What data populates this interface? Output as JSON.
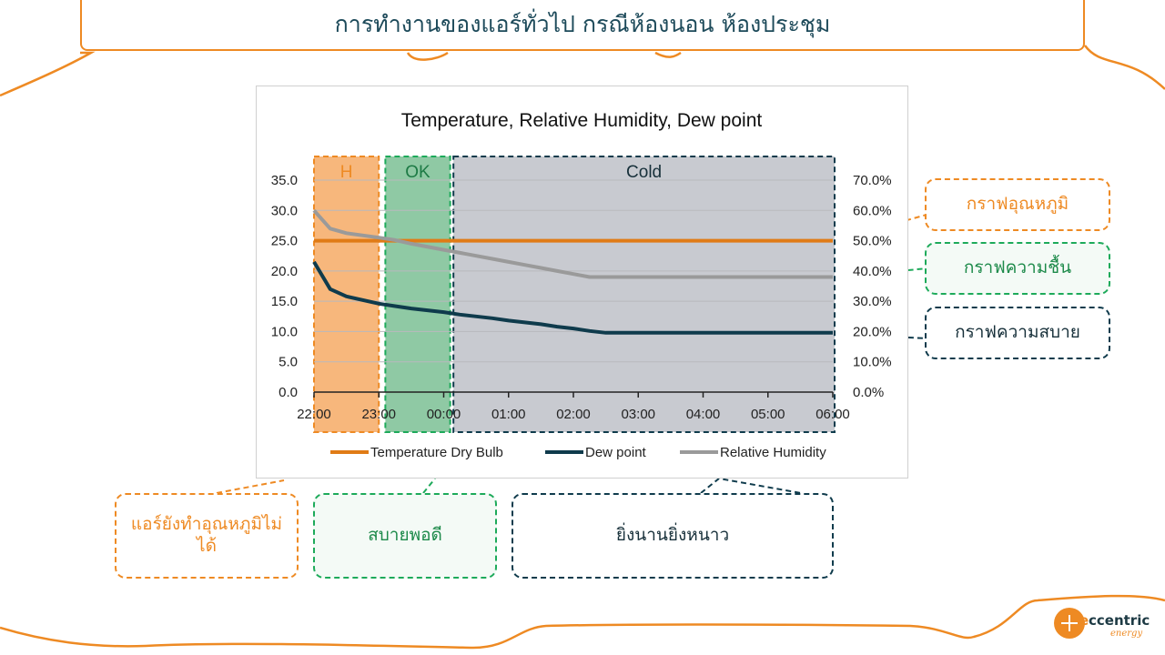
{
  "slide": {
    "title": "การทำงานของแอร์ทั่วไป กรณีห้องนอน ห้องประชุม",
    "accent_color": "#ee8a23",
    "logo": {
      "text_e": "e",
      "text_rest": "ccentric",
      "sub": "energy"
    }
  },
  "chart_data": {
    "type": "line",
    "title": "Temperature, Relative Humidity, Dew point",
    "x_ticks": [
      "22:00",
      "23:00",
      "00:00",
      "01:00",
      "02:00",
      "03:00",
      "04:00",
      "05:00",
      "06:00"
    ],
    "y_left": {
      "ticks": [
        "0.0",
        "5.0",
        "10.0",
        "15.0",
        "20.0",
        "25.0",
        "30.0",
        "35.0"
      ],
      "min": 0,
      "max": 35
    },
    "y_right": {
      "ticks": [
        "0.0%",
        "10.0%",
        "20.0%",
        "30.0%",
        "40.0%",
        "50.0%",
        "60.0%",
        "70.0%"
      ],
      "min": 0,
      "max": 70
    },
    "grid": true,
    "legend_position": "bottom",
    "series": [
      {
        "name": "Temperature Dry Bulb",
        "axis": "left",
        "color": "#e07b16",
        "x": [
          22.0,
          22.5,
          23.0,
          23.5,
          24.0,
          24.5,
          25.0,
          25.5,
          26.0,
          26.5,
          27.0,
          27.5,
          28.0,
          28.5,
          29.0,
          29.5,
          30.0
        ],
        "y": [
          25,
          25,
          25,
          25,
          25,
          25,
          25,
          25,
          25,
          25,
          25,
          25,
          25,
          25,
          25,
          25,
          25
        ]
      },
      {
        "name": "Dew point",
        "axis": "left",
        "color": "#0f3b4c",
        "x": [
          22.0,
          22.25,
          22.5,
          23.0,
          23.25,
          23.5,
          24.0,
          24.25,
          24.5,
          24.75,
          25.0,
          25.25,
          25.5,
          25.75,
          26.0,
          26.25,
          26.5,
          27.0,
          28.0,
          29.0,
          30.0
        ],
        "y": [
          21.5,
          17.0,
          15.8,
          14.6,
          14.2,
          13.8,
          13.2,
          12.8,
          12.5,
          12.2,
          11.8,
          11.5,
          11.2,
          10.8,
          10.5,
          10.1,
          9.8,
          9.8,
          9.8,
          9.8,
          9.8
        ]
      },
      {
        "name": "Relative Humidity",
        "axis": "right",
        "color": "#9a9a9a",
        "x": [
          22.0,
          22.25,
          22.5,
          23.0,
          23.25,
          23.5,
          24.0,
          24.25,
          24.5,
          24.75,
          25.0,
          25.25,
          25.5,
          25.75,
          26.0,
          26.25,
          26.5,
          27.0,
          28.0,
          29.0,
          30.0
        ],
        "y": [
          60.0,
          54.0,
          52.5,
          51.0,
          50.2,
          49.0,
          47.0,
          46.0,
          45.0,
          44.0,
          43.0,
          42.0,
          41.0,
          40.0,
          39.0,
          38.0,
          38.0,
          38.0,
          38.0,
          38.0,
          38.0
        ]
      }
    ],
    "regions": [
      {
        "label": "H",
        "from": 22.0,
        "to": 23.0,
        "fill": "#f7b77c",
        "border": "#ee8a23",
        "text_color": "#ee8a23"
      },
      {
        "label": "OK",
        "from": 23.1,
        "to": 24.1,
        "fill": "#8fc9a4",
        "border": "#1daa5a",
        "text_color": "#1d7a45"
      },
      {
        "label": "Cold",
        "from": 24.15,
        "to": 30.2,
        "fill": "#c8cad0",
        "border": "#0f3b4c",
        "text_color": "#17303a"
      }
    ]
  },
  "callouts": {
    "temp_graph": "กราฟอุณหภูมิ",
    "humidity_graph": "กราฟความชื้น",
    "comfort_graph": "กราฟความสบาย",
    "hot": "แอร์ยังทำอุณหภูมิไม่ได้",
    "ok": "สบายพอดี",
    "cold": "ยิ่งนานยิ่งหนาว"
  }
}
